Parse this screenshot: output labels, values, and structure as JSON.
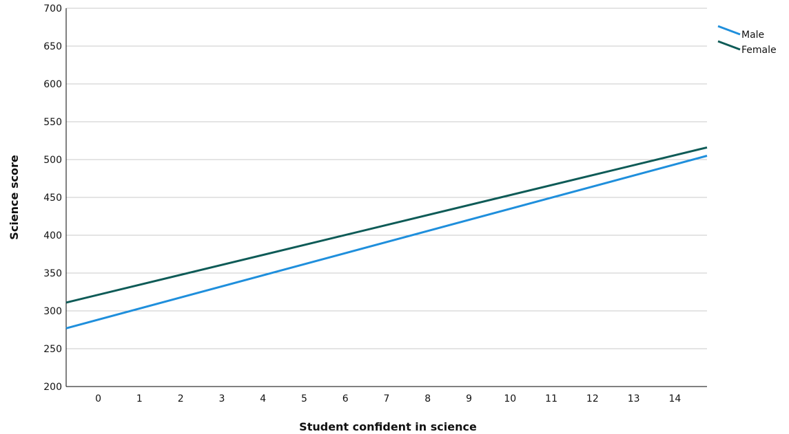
{
  "chart_data": {
    "type": "line",
    "title": "",
    "xlabel": "Student confident in science",
    "ylabel": "Science score",
    "x": [
      0,
      1,
      2,
      3,
      4,
      5,
      6,
      7,
      8,
      9,
      10,
      11,
      12,
      13,
      14
    ],
    "xlim": [
      -0.78,
      14.78
    ],
    "ylim": [
      200,
      700
    ],
    "yticks": [
      200,
      250,
      300,
      350,
      400,
      450,
      500,
      550,
      600,
      650,
      700
    ],
    "grid": true,
    "legend_position": "top-right",
    "series": [
      {
        "name": "Male",
        "color": "#1f8fdc",
        "points": [
          [
            -0.78,
            277
          ],
          [
            14.78,
            505
          ]
        ]
      },
      {
        "name": "Female",
        "color": "#0e5b57",
        "points": [
          [
            -0.78,
            311
          ],
          [
            14.78,
            516
          ]
        ]
      }
    ]
  }
}
